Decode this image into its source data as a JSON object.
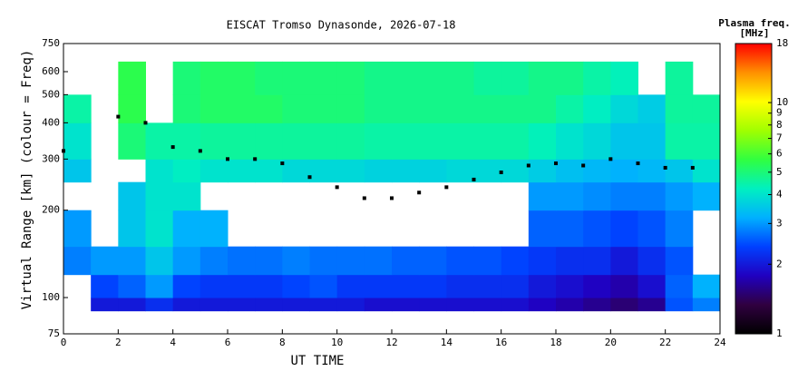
{
  "chart_data": {
    "type": "heatmap",
    "title": "EISCAT Tromso Dynasonde, 2026-07-18",
    "x_label": "UT TIME",
    "y_label": "Virtual Range [km] (colour = Freq)",
    "xlim": [
      0,
      24
    ],
    "xticks": [
      0,
      2,
      4,
      6,
      8,
      10,
      12,
      14,
      16,
      18,
      20,
      22,
      24
    ],
    "ylim": [
      75,
      750
    ],
    "yticks": [
      75,
      100,
      200,
      300,
      400,
      500,
      600,
      750
    ],
    "y_log": true,
    "x_bins": [
      0,
      1,
      2,
      3,
      4,
      5,
      6,
      7,
      8,
      9,
      10,
      11,
      12,
      13,
      14,
      15,
      16,
      17,
      18,
      19,
      20,
      21,
      22,
      23,
      24
    ],
    "y_bins": [
      90,
      100,
      120,
      150,
      200,
      250,
      300,
      400,
      500,
      650
    ],
    "values": [
      [
        null,
        2.0,
        2.0,
        2.2,
        2.0,
        2.0,
        2.0,
        2.0,
        2.0,
        2.0,
        2.0,
        1.9,
        1.9,
        1.9,
        1.9,
        1.9,
        1.9,
        1.8,
        1.7,
        1.6,
        1.5,
        1.6,
        2.5,
        2.8
      ],
      [
        null,
        2.4,
        2.6,
        3.0,
        2.4,
        2.3,
        2.3,
        2.3,
        2.4,
        2.5,
        2.3,
        2.3,
        2.3,
        2.3,
        2.2,
        2.2,
        2.2,
        2.0,
        1.9,
        1.8,
        1.7,
        1.9,
        2.6,
        3.2
      ],
      [
        2.8,
        3.0,
        3.0,
        3.5,
        3.0,
        2.8,
        2.7,
        2.7,
        2.8,
        2.7,
        2.7,
        2.7,
        2.6,
        2.6,
        2.5,
        2.5,
        2.4,
        2.3,
        2.2,
        2.2,
        2.0,
        2.2,
        2.5,
        null
      ],
      [
        3.0,
        null,
        3.5,
        4.0,
        3.2,
        3.2,
        null,
        null,
        null,
        null,
        null,
        null,
        null,
        null,
        null,
        null,
        null,
        2.6,
        2.6,
        2.5,
        2.4,
        2.5,
        2.8,
        null
      ],
      [
        null,
        null,
        3.5,
        4.0,
        4.0,
        null,
        null,
        null,
        null,
        null,
        null,
        null,
        null,
        null,
        null,
        null,
        null,
        3.0,
        3.0,
        2.9,
        2.8,
        2.8,
        3.0,
        3.2
      ],
      [
        3.5,
        null,
        null,
        4.0,
        4.2,
        4.0,
        4.0,
        4.0,
        3.8,
        3.8,
        3.8,
        3.7,
        3.7,
        3.7,
        3.8,
        3.8,
        3.8,
        3.6,
        3.4,
        3.3,
        3.2,
        3.3,
        3.5,
        4.0
      ],
      [
        4.0,
        null,
        5.0,
        4.5,
        4.5,
        4.6,
        4.6,
        4.6,
        4.6,
        4.6,
        4.6,
        4.5,
        4.5,
        4.5,
        4.5,
        4.5,
        4.5,
        4.3,
        4.0,
        3.8,
        3.5,
        3.5,
        4.5,
        4.5
      ],
      [
        4.5,
        null,
        5.5,
        null,
        5.0,
        5.2,
        5.2,
        5.2,
        5.0,
        5.0,
        5.0,
        4.8,
        4.8,
        4.8,
        4.8,
        4.8,
        4.8,
        4.8,
        4.5,
        4.2,
        3.8,
        3.6,
        4.6,
        4.6
      ],
      [
        null,
        null,
        5.5,
        null,
        5.0,
        5.2,
        5.2,
        5.0,
        5.0,
        5.0,
        5.0,
        4.8,
        4.8,
        4.8,
        4.8,
        4.6,
        4.6,
        4.8,
        4.8,
        4.5,
        4.3,
        null,
        4.6,
        null
      ]
    ],
    "trace": {
      "color": "#000000",
      "x": [
        0,
        1,
        2,
        3,
        4,
        5,
        6,
        7,
        8,
        9,
        10,
        11,
        12,
        13,
        14,
        15,
        16,
        17,
        18,
        19,
        20,
        21,
        22,
        23
      ],
      "y": [
        320,
        null,
        420,
        400,
        330,
        320,
        300,
        300,
        290,
        260,
        240,
        220,
        220,
        230,
        240,
        255,
        270,
        285,
        290,
        285,
        300,
        290,
        280,
        280
      ]
    },
    "colormap": [
      "#000000",
      "#300040",
      "#2000c0",
      "#0040ff",
      "#00b0ff",
      "#00f0c0",
      "#30ff40",
      "#a0ff00",
      "#ffff00",
      "#ff9000",
      "#ff0000"
    ],
    "colorbar": {
      "title": "Plasma freq.",
      "unit": "[MHz]",
      "lim": [
        1,
        18
      ],
      "log": true,
      "ticks": [
        1,
        2,
        3,
        4,
        5,
        6,
        7,
        8,
        9,
        10,
        18
      ]
    }
  }
}
